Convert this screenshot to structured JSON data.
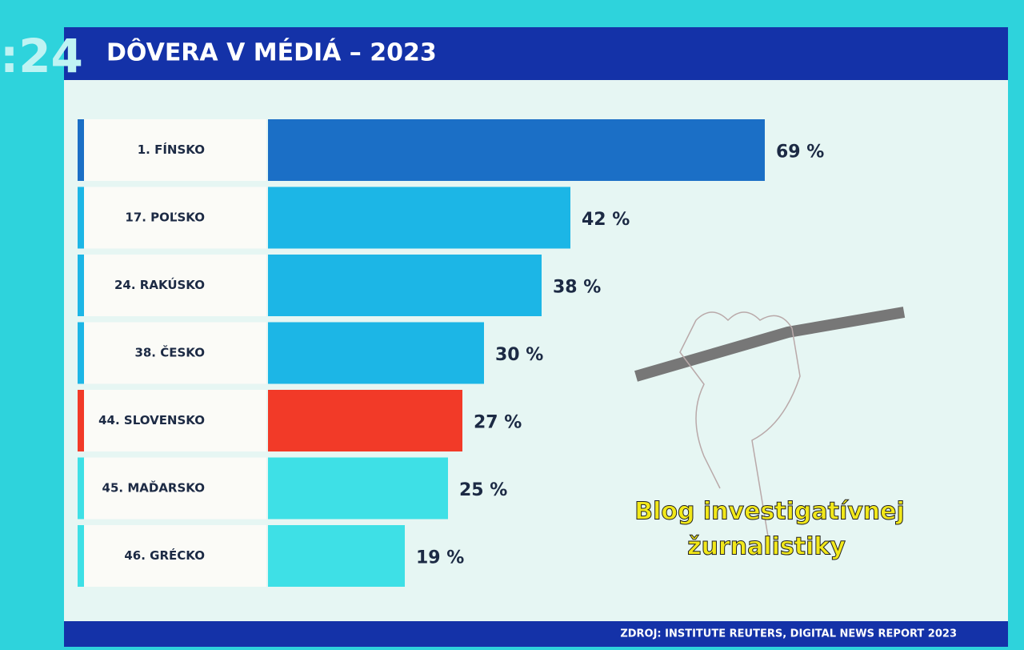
{
  "logo": ":24",
  "chart_data": {
    "type": "bar",
    "orientation": "horizontal",
    "title": "DÔVERA V MÉDIÁ – 2023",
    "categories": [
      "1. FÍNSKO",
      "17. POĽSKO",
      "24. RAKÚSKO",
      "38. ČESKO",
      "44. SLOVENSKO",
      "45. MAĎARSKO",
      "46. GRÉCKO"
    ],
    "values": [
      69,
      42,
      38,
      30,
      27,
      25,
      19
    ],
    "value_labels": [
      "69 %",
      "42 %",
      "38 %",
      "30 %",
      "27 %",
      "25 %",
      "19 %"
    ],
    "colors": [
      "#1b6fc6",
      "#1cb6e6",
      "#1cb6e6",
      "#1cb6e6",
      "#f23a28",
      "#3ee0e6",
      "#3ee0e6"
    ],
    "source": "ZDROJ: INSTITUTE REUTERS, DIGITAL NEWS REPORT 2023"
  },
  "watermark": [
    "Blog investigatívnej",
    "žurnalistiky"
  ]
}
